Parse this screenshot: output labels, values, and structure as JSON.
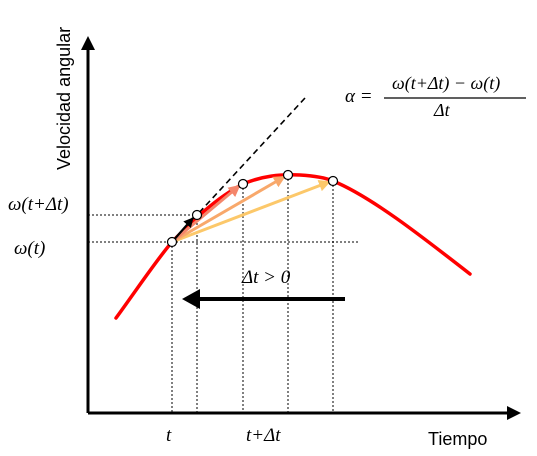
{
  "axes": {
    "y_label": "Velocidad angular",
    "x_label": "Tiempo"
  },
  "y_marks": {
    "upper": "ω(t+Δt)",
    "lower": "ω(t)"
  },
  "x_marks": {
    "t": "t",
    "t_dt": "t+Δt"
  },
  "formula": {
    "lhs": "α =",
    "numerator": "ω(t+Δt) − ω(t)",
    "denominator": "Δt"
  },
  "annotation": {
    "condition": "Δt > 0"
  },
  "colors": {
    "curve": "#ff0000",
    "tangent_arrow": "#000000",
    "secant_1": "#f4866b",
    "secant_2": "#f8a86b",
    "secant_3": "#fcc86a",
    "axis": "#000000",
    "limit_arrow": "#000000"
  }
}
